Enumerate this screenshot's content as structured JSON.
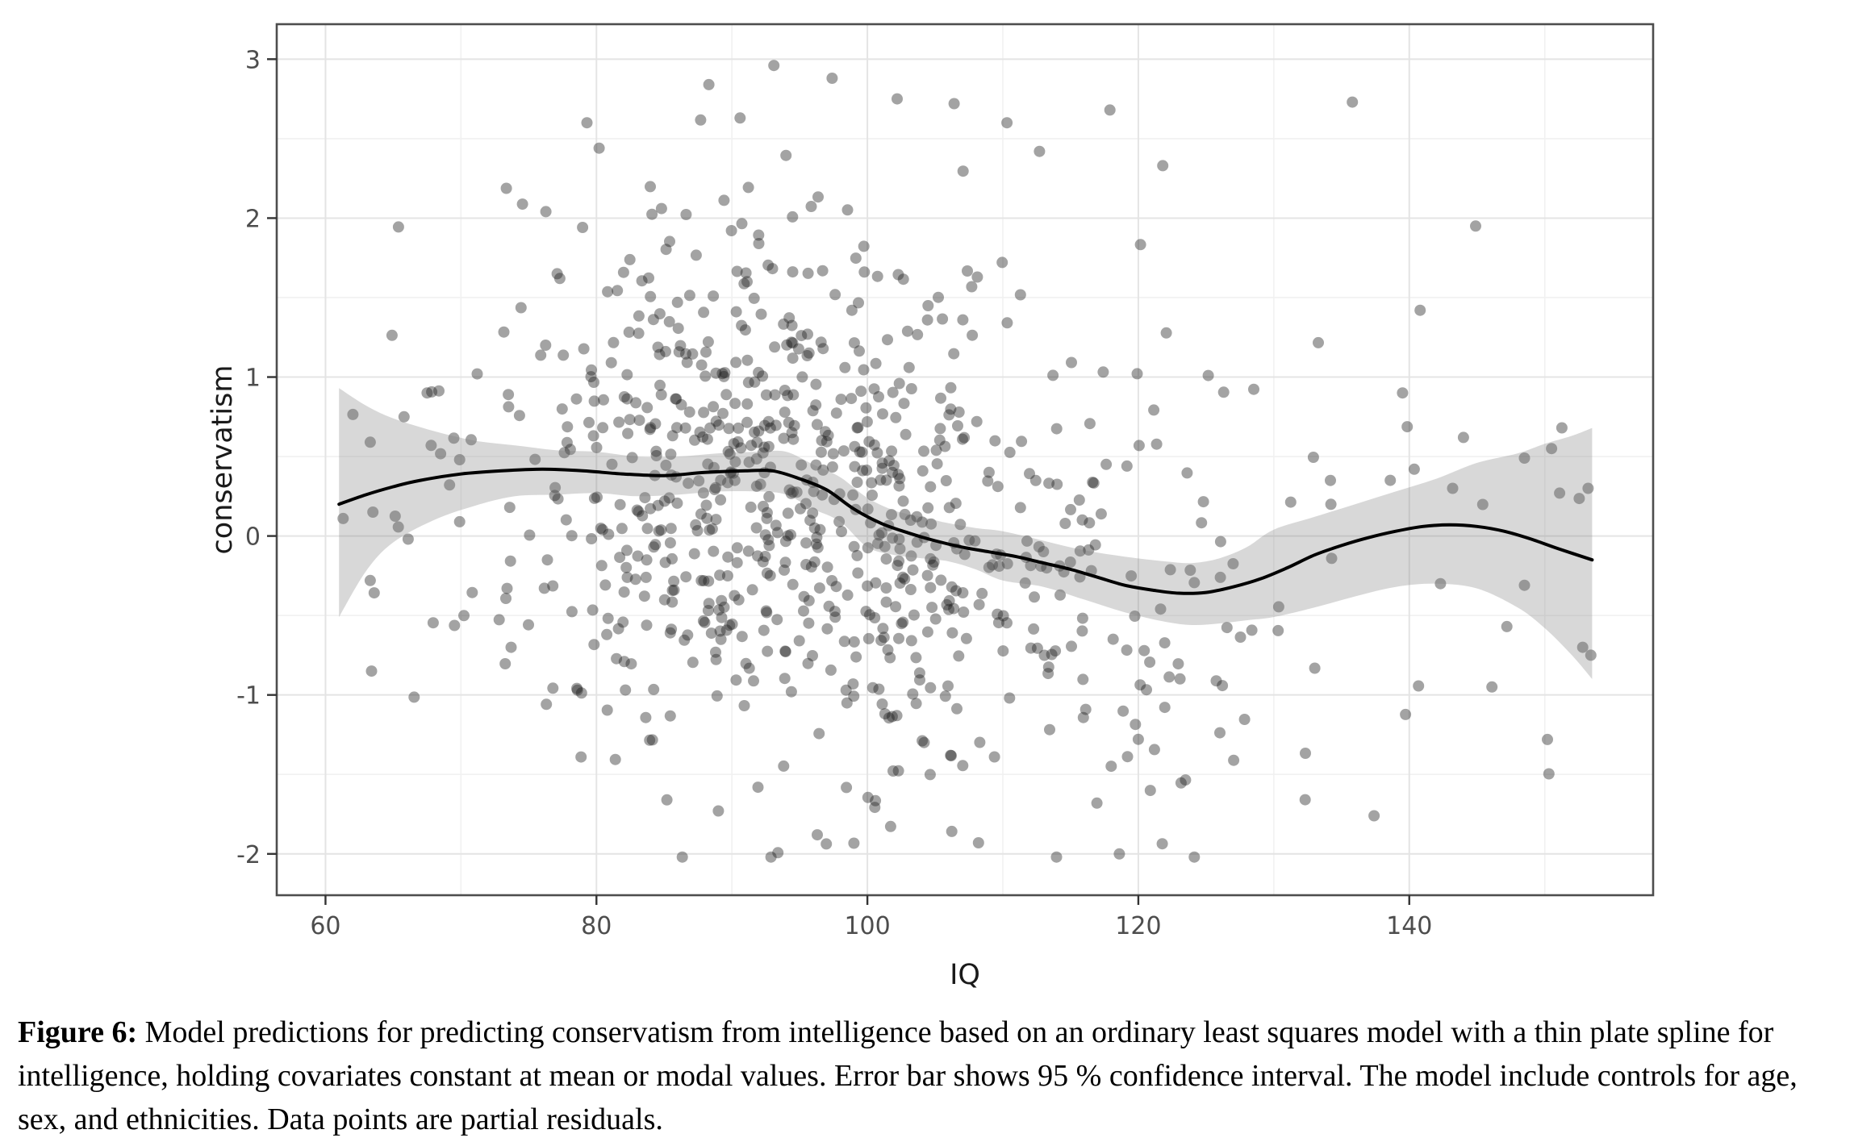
{
  "figure": {
    "caption": {
      "label": "Figure 6:",
      "text": "Model predictions for predicting conservatism from intelligence based on an ordinary least squares model with a thin plate spline for intelligence, holding covariates constant at mean or modal values. Error bar shows 95 % confidence interval. The model include controls for age, sex, and ethnicities. Data points are partial residuals."
    }
  },
  "chart_data": {
    "type": "scatter",
    "title": "",
    "xlabel": "IQ",
    "ylabel": "conservatism",
    "xlim": [
      56.4,
      158.0
    ],
    "ylim": [
      -2.26,
      3.22
    ],
    "x_ticks": [
      60,
      80,
      100,
      120,
      140
    ],
    "x_minor_ticks": [
      70,
      90,
      110,
      130,
      150
    ],
    "y_ticks": [
      3,
      2,
      1,
      0,
      -1,
      -2
    ],
    "y_minor_ticks": [
      2.5,
      1.5,
      0.5,
      -0.5,
      -1.5
    ],
    "grid": "major+minor",
    "legend": "none",
    "colors": {
      "point": "#1a1a1a",
      "point_opacity": 0.4,
      "smooth_line": "#000000",
      "band_fill": "#7f7f7f",
      "band_opacity": 0.3,
      "grid_major": "#e4e4e4",
      "grid_minor": "#f1f1f1",
      "panel_border": "#4d4d4d",
      "tick_mark": "#333333",
      "tick_text": "#4d4d4d"
    },
    "smooth_line": {
      "name": "thin plate spline fit",
      "points": [
        [
          61,
          0.2
        ],
        [
          63,
          0.26
        ],
        [
          65,
          0.31
        ],
        [
          67,
          0.35
        ],
        [
          70,
          0.39
        ],
        [
          73,
          0.41
        ],
        [
          76,
          0.42
        ],
        [
          79,
          0.41
        ],
        [
          82,
          0.39
        ],
        [
          85,
          0.38
        ],
        [
          88,
          0.4
        ],
        [
          91,
          0.41
        ],
        [
          93,
          0.41
        ],
        [
          95,
          0.36
        ],
        [
          97,
          0.29
        ],
        [
          99,
          0.17
        ],
        [
          101,
          0.08
        ],
        [
          103,
          0.02
        ],
        [
          105,
          -0.03
        ],
        [
          107,
          -0.07
        ],
        [
          109,
          -0.1
        ],
        [
          111,
          -0.13
        ],
        [
          113,
          -0.17
        ],
        [
          115,
          -0.21
        ],
        [
          117,
          -0.26
        ],
        [
          119,
          -0.31
        ],
        [
          121,
          -0.34
        ],
        [
          123,
          -0.36
        ],
        [
          125,
          -0.355
        ],
        [
          127,
          -0.32
        ],
        [
          129,
          -0.27
        ],
        [
          131,
          -0.2
        ],
        [
          133,
          -0.12
        ],
        [
          135,
          -0.06
        ],
        [
          137,
          -0.01
        ],
        [
          139,
          0.03
        ],
        [
          141,
          0.06
        ],
        [
          143,
          0.07
        ],
        [
          145,
          0.06
        ],
        [
          147,
          0.03
        ],
        [
          149,
          -0.02
        ],
        [
          151,
          -0.08
        ],
        [
          153.5,
          -0.15
        ]
      ]
    },
    "confidence_band": {
      "name": "95 % confidence interval",
      "level": "95 %",
      "points": [
        [
          61,
          0.93,
          -0.51
        ],
        [
          63,
          0.82,
          -0.22
        ],
        [
          65,
          0.74,
          -0.04
        ],
        [
          68,
          0.66,
          0.1
        ],
        [
          71,
          0.6,
          0.19
        ],
        [
          74,
          0.57,
          0.25
        ],
        [
          77,
          0.54,
          0.26
        ],
        [
          80,
          0.53,
          0.27
        ],
        [
          83,
          0.5,
          0.25
        ],
        [
          86,
          0.5,
          0.26
        ],
        [
          89,
          0.52,
          0.28
        ],
        [
          92,
          0.53,
          0.28
        ],
        [
          94,
          0.53,
          0.26
        ],
        [
          96,
          0.45,
          0.17
        ],
        [
          98,
          0.37,
          0.09
        ],
        [
          100,
          0.24,
          -0.07
        ],
        [
          102,
          0.16,
          -0.12
        ],
        [
          104,
          0.12,
          -0.14
        ],
        [
          106,
          0.08,
          -0.16
        ],
        [
          108,
          0.05,
          -0.21
        ],
        [
          110,
          0.03,
          -0.28
        ],
        [
          113,
          -0.03,
          -0.32
        ],
        [
          116,
          -0.09,
          -0.4
        ],
        [
          119,
          -0.13,
          -0.48
        ],
        [
          122,
          -0.16,
          -0.54
        ],
        [
          124,
          -0.17,
          -0.56
        ],
        [
          126,
          -0.14,
          -0.55
        ],
        [
          128,
          -0.07,
          -0.53
        ],
        [
          130,
          0.04,
          -0.51
        ],
        [
          133,
          0.12,
          -0.45
        ],
        [
          136,
          0.2,
          -0.38
        ],
        [
          139,
          0.28,
          -0.32
        ],
        [
          142,
          0.36,
          -0.3
        ],
        [
          145,
          0.46,
          -0.33
        ],
        [
          148,
          0.52,
          -0.45
        ],
        [
          150,
          0.58,
          -0.58
        ],
        [
          152,
          0.63,
          -0.75
        ],
        [
          153.5,
          0.68,
          -0.9
        ]
      ]
    },
    "scatter": {
      "name": "partial residuals",
      "n_points_approx": 870,
      "marker": {
        "radius_px": 7
      },
      "x_range": [
        61,
        153.5
      ],
      "y_range": [
        -2.02,
        2.98
      ],
      "generator": {
        "seed": 42,
        "y_sigma": 0.82,
        "clusters": [
          {
            "n": 740,
            "x_dist": "normal",
            "x_mean": 94,
            "x_sd": 11.5,
            "x_min": 63,
            "x_max": 134
          },
          {
            "n": 60,
            "x_dist": "normal",
            "x_mean": 122,
            "x_sd": 6,
            "x_min": 112,
            "x_max": 136
          },
          {
            "n": 10,
            "x_dist": "uniform",
            "x_min": 134,
            "x_max": 153.5
          },
          {
            "n": 6,
            "x_dist": "uniform",
            "x_min": 61,
            "x_max": 72
          }
        ]
      },
      "feature_points": [
        [
          61.3,
          0.11
        ],
        [
          63.3,
          0.59
        ],
        [
          63.5,
          0.15
        ],
        [
          63.3,
          -0.28
        ],
        [
          63.4,
          -0.85
        ],
        [
          65.8,
          0.75
        ],
        [
          66.1,
          -0.02
        ],
        [
          67.5,
          0.9
        ],
        [
          67.8,
          0.57
        ],
        [
          69.9,
          0.48
        ],
        [
          69.9,
          0.09
        ],
        [
          71.2,
          1.02
        ],
        [
          73.5,
          0.89
        ],
        [
          73.6,
          0.18
        ],
        [
          73.4,
          -0.33
        ],
        [
          73.7,
          -0.7
        ],
        [
          77.1,
          1.65
        ],
        [
          77.3,
          1.62
        ],
        [
          79.3,
          2.6
        ],
        [
          80.2,
          2.44
        ],
        [
          84.8,
          2.06
        ],
        [
          88.3,
          2.84
        ],
        [
          90.6,
          2.63
        ],
        [
          93.1,
          2.96
        ],
        [
          97.4,
          2.88
        ],
        [
          102.2,
          2.75
        ],
        [
          106.4,
          2.72
        ],
        [
          110.3,
          2.6
        ],
        [
          112.7,
          2.42
        ],
        [
          117.9,
          2.68
        ],
        [
          121.8,
          2.33
        ],
        [
          135.8,
          2.73
        ],
        [
          140.8,
          1.42
        ],
        [
          144.9,
          1.95
        ],
        [
          137.4,
          -1.76
        ],
        [
          118.6,
          -2.0
        ],
        [
          108.2,
          -1.93
        ],
        [
          96.3,
          -1.88
        ],
        [
          89.0,
          -1.73
        ],
        [
          85.2,
          -1.66
        ],
        [
          148.5,
          0.49
        ],
        [
          151.1,
          0.27
        ],
        [
          148.5,
          -0.31
        ],
        [
          147.2,
          -0.57
        ],
        [
          153.4,
          -0.75
        ],
        [
          152.8,
          -0.7
        ],
        [
          146.1,
          -0.95
        ],
        [
          150.2,
          -1.28
        ],
        [
          144.0,
          0.62
        ],
        [
          143.2,
          0.3
        ],
        [
          150.5,
          0.55
        ],
        [
          153.2,
          0.3
        ],
        [
          139.5,
          0.9
        ],
        [
          142.3,
          -0.3
        ],
        [
          138.6,
          0.35
        ]
      ]
    }
  }
}
